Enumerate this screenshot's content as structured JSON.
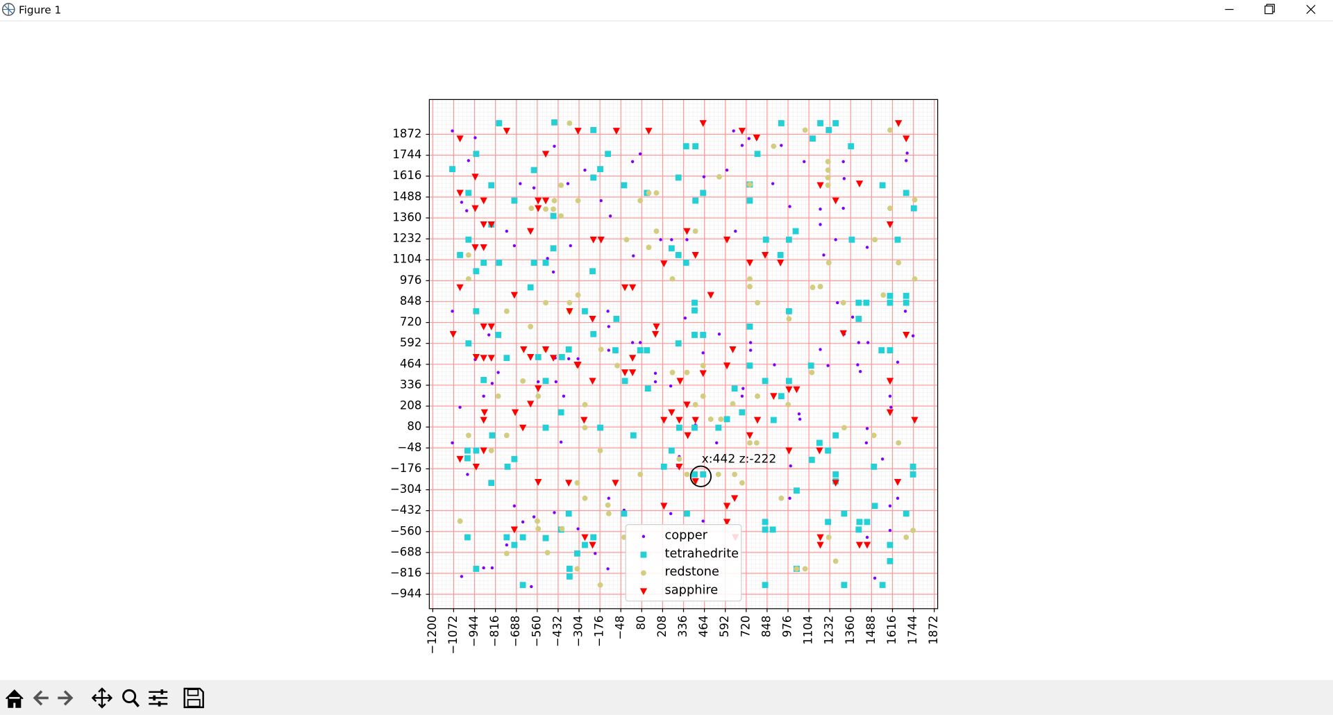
{
  "window": {
    "title": "Figure 1"
  },
  "chart_data": {
    "type": "scatter",
    "xlim": [
      -1221,
      1893
    ],
    "ylim": [
      -1032,
      2085
    ],
    "xticks": [
      {
        "value": -1200,
        "label": "−1200"
      },
      {
        "value": -1072,
        "label": "−1072"
      },
      {
        "value": -944,
        "label": "−944"
      },
      {
        "value": -816,
        "label": "−816"
      },
      {
        "value": -688,
        "label": "−688"
      },
      {
        "value": -560,
        "label": "−560"
      },
      {
        "value": -432,
        "label": "−432"
      },
      {
        "value": -304,
        "label": "−304"
      },
      {
        "value": -176,
        "label": "−176"
      },
      {
        "value": -48,
        "label": "−48"
      },
      80,
      208,
      336,
      464,
      592,
      720,
      848,
      976,
      1104,
      1232,
      1360,
      1488,
      1616,
      1744,
      1872
    ],
    "yticks": [
      {
        "value": -944,
        "label": "−944"
      },
      {
        "value": -816,
        "label": "−816"
      },
      {
        "value": -688,
        "label": "−688"
      },
      {
        "value": -560,
        "label": "−560"
      },
      {
        "value": -432,
        "label": "−432"
      },
      {
        "value": -304,
        "label": "−304"
      },
      {
        "value": -176,
        "label": "−176"
      },
      {
        "value": -48,
        "label": "−48"
      },
      80,
      208,
      336,
      464,
      592,
      720,
      848,
      976,
      1104,
      1232,
      1360,
      1488,
      1616,
      1744,
      1872
    ],
    "grid": true,
    "grid_color": "#ff9a9a",
    "minor_grid": true,
    "legend": "lower center",
    "annotation": {
      "text": "x:442 z:-222",
      "x": 442,
      "y": -222
    },
    "series": [
      {
        "name": "copper",
        "color": "#8000ff",
        "marker": ".",
        "x": [
          -1080,
          -940,
          -981,
          -1023,
          -992,
          -1080,
          -1033,
          -1080,
          -987,
          -888,
          -836,
          -940,
          -799,
          -856,
          -747,
          -700,
          -664,
          -580,
          -455,
          -461,
          -497,
          -554,
          -445,
          -398,
          -414,
          -450,
          -580,
          -455,
          -356,
          -372,
          -367,
          -310,
          -268,
          -169,
          -112,
          24,
          71,
          29,
          -127,
          -122,
          -122,
          24,
          71,
          164,
          164,
          258,
          300,
          216,
          258,
          196,
          263,
          346,
          357,
          461,
          602,
          643,
          695,
          737,
          784,
          935,
          654,
          737,
          747,
          747,
          695,
          893,
          883,
          987,
          1075,
          1174,
          1195,
          1174,
          1268,
          1315,
          1320,
          1315,
          1279,
          1320,
          1372,
          1409,
          1174,
          1221,
          1461,
          1466,
          1403,
          1419,
          1461,
          1456,
          1601,
          1607,
          1648,
          1648,
          1700,
          1706,
          1695,
          1742,
          1555,
          1508,
          1461,
          1601,
          1601,
          1049,
          1044,
          987,
          992,
          701,
          555,
          456,
          456,
          539,
          409,
          310,
          -28,
          -122,
          -127,
          -205,
          -310,
          -362,
          -596,
          -648,
          -700,
          -747,
          -747,
          -940,
          -1023,
          -836,
          -888
        ],
        "values": [
          1893,
          1851,
          1711,
          1456,
          1404,
          789,
          201,
          -17,
          -210,
          269,
          347,
          493,
          414,
          644,
          1279,
          1190,
          1570,
          1544,
          1799,
          1029,
          1112,
          357,
          357,
          269,
          -12,
          503,
          -470,
          -444,
          1190,
          1570,
          498,
          498,
          1653,
          1466,
          1372,
          1705,
          1752,
          1128,
          789,
          695,
          550,
          597,
          597,
          409,
          357,
          331,
          -158,
          -163,
          -450,
          1227,
          1227,
          747,
          1227,
          1612,
          1653,
          1893,
          1804,
          1846,
          1846,
          1804,
          1279,
          935,
          597,
          550,
          269,
          461,
          1570,
          1430,
          1705,
          1320,
          1133,
          1414,
          1227,
          1705,
          1601,
          1419,
          841,
          649,
          753,
          597,
          555,
          456,
          1180,
          597,
          461,
          420,
          71,
          -17,
          269,
          201,
          477,
          -356,
          1711,
          1757,
          789,
          638,
          -116,
          -845,
          -595,
          -553,
          -403,
          128,
          160,
          -356,
          -158,
          316,
          649,
          534,
          -496,
          -17,
          92,
          -101,
          -429,
          -356,
          -788,
          -694,
          -543,
          -455,
          -897,
          -501,
          -403,
          -694,
          -642,
          -782,
          -835,
          -782,
          -782
        ]
      },
      {
        "name": "tetrahedrite",
        "color": "#22d0d6",
        "marker": "s",
        "x": [
          -794,
          -455,
          -216,
          935,
          1174,
          1268,
          1362,
          1226,
          1127,
          -1080,
          -934,
          -841,
          -981,
          -700,
          -580,
          -461,
          -216,
          -174,
          -127,
          -28,
          112,
          305,
          352,
          409,
          409,
          456,
          742,
          789,
          742,
          982,
          1023,
          841,
          930,
          1367,
          1700,
          1747,
          1555,
          1648,
          -981,
          -1033,
          -888,
          -934,
          -794,
          -841,
          -580,
          -508,
          -461,
          -601,
          -221,
          263,
          305,
          352,
          305,
          404,
          456,
          404,
          404,
          742,
          742,
          982,
          1409,
          1456,
          1700,
          1601,
          1601,
          1700,
          1409,
          1117,
          982,
          836,
          935,
          649,
          550,
          602,
          695,
          888,
          1169,
          1268,
          1221,
          1122,
          1502,
          1742,
          1742,
          1268,
          1268,
          1549,
          1601,
          -934,
          -888,
          -981,
          -799,
          -747,
          -554,
          -508,
          -409,
          -367,
          -268,
          -216,
          -81,
          -75,
          112,
          71,
          -23,
          118,
          216,
          263,
          310,
          404,
          404,
          456,
          29,
          -174,
          -508,
          -414,
          -836,
          -987,
          -934,
          -987,
          -700,
          -742,
          -841,
          -987,
          -934,
          -747,
          -700,
          -648,
          -508,
          -414,
          -367,
          -362,
          -362,
          -315,
          -268,
          -216,
          -28,
          357,
          836,
          883,
          836,
          1029,
          1029,
          1221,
          1320,
          1414,
          1461,
          1409,
          1508,
          1601,
          1601,
          1700,
          1555,
          1320,
          836,
          -648
        ],
        "values": [
          1940,
          1945,
          1898,
          1940,
          1940,
          1940,
          1799,
          1898,
          1846,
          1659,
          1752,
          1560,
          1513,
          1466,
          1653,
          1372,
          1607,
          1659,
          1752,
          1560,
          1513,
          1607,
          1799,
          1799,
          1466,
          1513,
          1466,
          1752,
          1565,
          1227,
          1279,
          1227,
          1133,
          1227,
          1513,
          1419,
          1560,
          1227,
          1227,
          1133,
          1086,
          1034,
          1086,
          1320,
          1086,
          1086,
          1174,
          935,
          1034,
          1174,
          1133,
          1086,
          592,
          794,
          644,
          644,
          841,
          456,
          695,
          789,
          841,
          841,
          841,
          841,
          883,
          883,
          742,
          456,
          362,
          362,
          269,
          316,
          76,
          128,
          170,
          123,
          -17,
          29,
          -64,
          -121,
          -163,
          -163,
          -210,
          -210,
          -252,
          550,
          550,
          789,
          368,
          592,
          644,
          503,
          508,
          362,
          508,
          555,
          789,
          649,
          550,
          742,
          550,
          550,
          362,
          316,
          -163,
          -64,
          76,
          76,
          -210,
          -210,
          29,
          76,
          76,
          170,
          29,
          -64,
          -64,
          -111,
          -116,
          -163,
          -262,
          -595,
          -788,
          -595,
          -642,
          -595,
          -600,
          -548,
          -450,
          -788,
          -835,
          -694,
          -642,
          -595,
          -450,
          -450,
          -501,
          -548,
          -548,
          -309,
          -788,
          -501,
          -450,
          -501,
          -501,
          -548,
          -403,
          -642,
          -741,
          -450,
          -887,
          -887,
          -887,
          -887
        ]
      },
      {
        "name": "redstone",
        "color": "#d3cd80",
        "marker": "o",
        "x": [
          -362,
          1081,
          1601,
          888,
          1221,
          1221,
          1221,
          1221,
          742,
          555,
          -414,
          -455,
          -596,
          -508,
          -461,
          -414,
          -310,
          71,
          170,
          123,
          170,
          123,
          -13,
          409,
          268,
          1508,
          742,
          742,
          789,
          982,
          1127,
          1174,
          1226,
          1315,
          1653,
          1752,
          1560,
          1752,
          -981,
          -981,
          -747,
          -601,
          -508,
          -362,
          -310,
          -362,
          -169,
          -70,
          268,
          357,
          456,
          409,
          456,
          565,
          503,
          638,
          784,
          742,
          649,
          695,
          550,
          404,
          357,
          71,
          310,
          1226,
          1268,
          1653,
          1320,
          1122,
          1502,
          -981,
          -841,
          -747,
          -799,
          -648,
          -554,
          -508,
          -268,
          -268,
          -174,
          -315,
          -268,
          -127,
          -122,
          -28,
          -559,
          -554,
          -497,
          -409,
          -315,
          -174,
          -747,
          -1033,
          1081,
          1029,
          935,
          977,
          789,
          1700,
          1742,
          1601
        ],
        "values": [
          1940,
          1898,
          1898,
          1799,
          1705,
          1653,
          1607,
          1560,
          1565,
          1612,
          1560,
          1466,
          1419,
          1414,
          1414,
          1372,
          1466,
          1466,
          1513,
          1513,
          1279,
          1180,
          1227,
          1279,
          987,
          1227,
          987,
          940,
          841,
          742,
          935,
          940,
          1086,
          841,
          1086,
          987,
          888,
          1471,
          1133,
          987,
          789,
          695,
          841,
          841,
          888,
          789,
          555,
          456,
          414,
          414,
          456,
          217,
          269,
          128,
          128,
          222,
          -17,
          -17,
          -210,
          -262,
          -210,
          -257,
          -210,
          -210,
          -116,
          -595,
          -741,
          -17,
          76,
          414,
          29,
          29,
          -64,
          29,
          269,
          362,
          269,
          555,
          217,
          76,
          -64,
          -262,
          -356,
          -398,
          -450,
          -595,
          -496,
          -543,
          -689,
          -543,
          -788,
          -887,
          -694,
          -496,
          -788,
          -788,
          -356,
          217,
          269,
          -595,
          -553,
          1419
        ]
      },
      {
        "name": "sapphire",
        "color": "#ff0000",
        "marker": "v",
        "x": [
          -1033,
          -747,
          -310,
          -75,
          123,
          456,
          695,
          784,
          1653,
          1700,
          -940,
          -1033,
          -888,
          -940,
          -508,
          -554,
          -508,
          -554,
          -888,
          -841,
          -888,
          -940,
          -601,
          -216,
          -169,
          357,
          409,
          602,
          742,
          836,
          930,
          1174,
          1268,
          1414,
          1601,
          -1033,
          -23,
          24,
          216,
          503,
          -700,
          -888,
          -841,
          -1075,
          -934,
          -888,
          -841,
          -643,
          -601,
          -508,
          -461,
          -310,
          -362,
          -221,
          164,
          170,
          24,
          -23,
          24,
          638,
          602,
          456,
          315,
          357,
          263,
          216,
          310,
          409,
          362,
          742,
          789,
          982,
          1029,
          888,
          982,
          1169,
          1315,
          1601,
          1601,
          1752,
          1648,
          1700,
          -883,
          -888,
          -695,
          -648,
          -554,
          -601,
          -888,
          -1033,
          -934,
          -554,
          -367,
          -315,
          -273,
          -221,
          -81,
          216,
          310,
          409,
          602,
          649,
          602,
          654,
          1174,
          1174,
          1414,
          1461,
          1268,
          -700,
          -268,
          -221
        ],
        "values": [
          1846,
          1893,
          1893,
          1893,
          1893,
          1940,
          1893,
          1851,
          1940,
          1846,
          1612,
          1513,
          1466,
          1419,
          1752,
          1466,
          1466,
          1419,
          1320,
          1320,
          1180,
          1180,
          1279,
          1227,
          1227,
          1279,
          1133,
          1227,
          1086,
          1133,
          1086,
          1560,
          1466,
          1570,
          1320,
          935,
          935,
          935,
          1081,
          888,
          888,
          695,
          695,
          649,
          508,
          503,
          503,
          555,
          508,
          555,
          503,
          461,
          789,
          742,
          649,
          695,
          503,
          414,
          414,
          555,
          456,
          409,
          362,
          217,
          170,
          123,
          123,
          123,
          29,
          29,
          123,
          310,
          310,
          269,
          -64,
          -64,
          654,
          362,
          170,
          123,
          -257,
          644,
          170,
          123,
          170,
          76,
          316,
          222,
          -64,
          -116,
          -163,
          -257,
          -262,
          461,
          123,
          362,
          -262,
          -403,
          -163,
          -252,
          -403,
          -356,
          -501,
          -595,
          -595,
          -642,
          -642,
          -642,
          -262,
          -548,
          -595,
          -642
        ]
      }
    ]
  }
}
